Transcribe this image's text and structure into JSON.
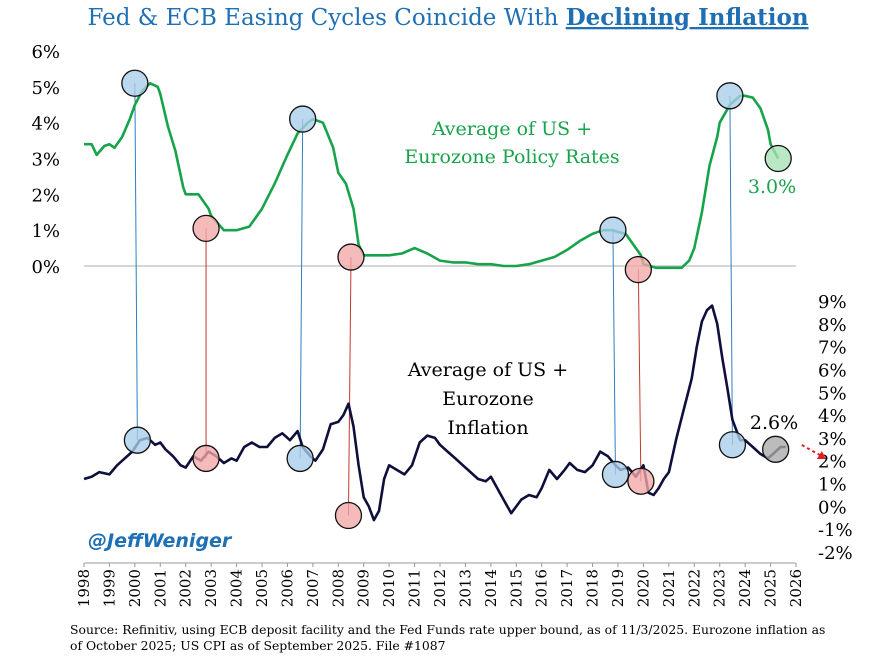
{
  "chart_data": {
    "type": "line",
    "title": "Fed & ECB Easing Cycles Coincide With ",
    "title_emphasis": "Declining Inflation",
    "x_ticks": [
      "1998",
      "1999",
      "2000",
      "2001",
      "2002",
      "2003",
      "2004",
      "2005",
      "2006",
      "2007",
      "2008",
      "2009",
      "2010",
      "2011",
      "2012",
      "2013",
      "2014",
      "2015",
      "2016",
      "2017",
      "2018",
      "2019",
      "2020",
      "2021",
      "2022",
      "2023",
      "2024",
      "2025",
      "2026"
    ],
    "xlim": [
      1998,
      2026
    ],
    "left_axis": {
      "ticks": [
        "0%",
        "1%",
        "2%",
        "3%",
        "4%",
        "5%",
        "6%"
      ],
      "ylim": [
        0,
        6
      ]
    },
    "right_axis": {
      "ticks": [
        "-2%",
        "-1%",
        "0%",
        "1%",
        "2%",
        "3%",
        "4%",
        "5%",
        "6%",
        "7%",
        "8%",
        "9%"
      ],
      "ylim": [
        -2,
        9
      ]
    },
    "series": [
      {
        "name": "Average of US + Eurozone Policy Rates",
        "label_lines": [
          "Average of US +",
          "Eurozone Policy Rates"
        ],
        "axis": "left",
        "color": "#17a34a",
        "end_label": "3.0%",
        "x": [
          1998.0,
          1998.3,
          1998.5,
          1998.8,
          1999.0,
          1999.2,
          1999.5,
          1999.8,
          2000.0,
          2000.3,
          2000.6,
          2000.9,
          2001.0,
          2001.3,
          2001.6,
          2001.9,
          2002.0,
          2002.5,
          2002.9,
          2003.0,
          2003.5,
          2003.8,
          2004.0,
          2004.5,
          2005.0,
          2005.5,
          2006.0,
          2006.4,
          2006.8,
          2007.0,
          2007.4,
          2007.8,
          2008.0,
          2008.3,
          2008.6,
          2008.8,
          2009.0,
          2009.5,
          2010.0,
          2010.5,
          2011.0,
          2011.5,
          2012.0,
          2012.5,
          2013.0,
          2013.5,
          2014.0,
          2014.5,
          2015.0,
          2015.5,
          2016.0,
          2016.5,
          2017.0,
          2017.5,
          2018.0,
          2018.4,
          2018.8,
          2019.0,
          2019.3,
          2019.6,
          2019.9,
          2020.0,
          2020.5,
          2021.0,
          2021.5,
          2021.8,
          2022.0,
          2022.3,
          2022.6,
          2022.9,
          2023.0,
          2023.4,
          2023.8,
          2024.0,
          2024.3,
          2024.6,
          2024.9,
          2025.0,
          2025.3
        ],
        "y": [
          3.4,
          3.4,
          3.1,
          3.35,
          3.4,
          3.3,
          3.6,
          4.1,
          4.5,
          4.9,
          5.1,
          5.0,
          4.8,
          3.9,
          3.2,
          2.2,
          2.0,
          2.0,
          1.6,
          1.4,
          1.0,
          1.0,
          1.0,
          1.1,
          1.6,
          2.3,
          3.1,
          3.7,
          4.0,
          4.1,
          4.0,
          3.3,
          2.6,
          2.3,
          1.6,
          0.6,
          0.3,
          0.3,
          0.3,
          0.35,
          0.5,
          0.35,
          0.15,
          0.1,
          0.1,
          0.05,
          0.05,
          0.0,
          0.0,
          0.05,
          0.15,
          0.25,
          0.45,
          0.7,
          0.9,
          1.0,
          1.0,
          0.95,
          0.9,
          0.6,
          0.3,
          0.05,
          -0.05,
          -0.05,
          -0.05,
          0.15,
          0.5,
          1.5,
          2.8,
          3.6,
          4.0,
          4.5,
          4.75,
          4.75,
          4.7,
          4.4,
          3.8,
          3.4,
          3.0
        ]
      },
      {
        "name": "Average of US + Eurozone Inflation",
        "label_lines": [
          "Average of US +",
          "Eurozone",
          "Inflation"
        ],
        "axis": "right",
        "color": "#0f0f3c",
        "end_label": "2.6%",
        "x": [
          1998.0,
          1998.3,
          1998.6,
          1999.0,
          1999.3,
          1999.6,
          1999.9,
          2000.2,
          2000.5,
          2000.8,
          2001.0,
          2001.2,
          2001.5,
          2001.8,
          2002.0,
          2002.3,
          2002.6,
          2002.9,
          2003.2,
          2003.5,
          2003.8,
          2004.0,
          2004.3,
          2004.6,
          2004.9,
          2005.2,
          2005.5,
          2005.8,
          2006.1,
          2006.4,
          2006.6,
          2006.9,
          2007.1,
          2007.4,
          2007.7,
          2008.0,
          2008.2,
          2008.4,
          2008.6,
          2008.8,
          2009.0,
          2009.2,
          2009.4,
          2009.6,
          2009.8,
          2010.0,
          2010.3,
          2010.6,
          2010.9,
          2011.2,
          2011.5,
          2011.8,
          2012.0,
          2012.3,
          2012.6,
          2012.9,
          2013.2,
          2013.5,
          2013.8,
          2014.0,
          2014.2,
          2014.4,
          2014.6,
          2014.8,
          2015.0,
          2015.2,
          2015.5,
          2015.8,
          2016.0,
          2016.3,
          2016.6,
          2016.9,
          2017.1,
          2017.4,
          2017.7,
          2018.0,
          2018.3,
          2018.6,
          2018.9,
          2019.1,
          2019.4,
          2019.7,
          2020.0,
          2020.2,
          2020.4,
          2020.6,
          2020.8,
          2021.0,
          2021.3,
          2021.6,
          2021.9,
          2022.1,
          2022.3,
          2022.5,
          2022.7,
          2022.9,
          2023.1,
          2023.3,
          2023.5,
          2023.8,
          2024.0,
          2024.3,
          2024.6,
          2024.9,
          2025.1,
          2025.4,
          2025.6
        ],
        "y": [
          1.2,
          1.3,
          1.5,
          1.4,
          1.8,
          2.1,
          2.4,
          2.9,
          3.0,
          2.7,
          2.8,
          2.5,
          2.2,
          1.8,
          1.7,
          2.2,
          2.0,
          2.4,
          2.2,
          1.9,
          2.1,
          2.0,
          2.6,
          2.8,
          2.6,
          2.6,
          3.0,
          3.2,
          2.9,
          3.3,
          2.6,
          2.2,
          2.0,
          2.5,
          3.6,
          3.7,
          4.0,
          4.5,
          3.5,
          1.8,
          0.4,
          0.0,
          -0.6,
          -0.2,
          1.2,
          1.8,
          1.6,
          1.4,
          1.8,
          2.8,
          3.1,
          3.0,
          2.7,
          2.4,
          2.1,
          1.8,
          1.5,
          1.2,
          1.1,
          1.3,
          0.9,
          0.5,
          0.1,
          -0.3,
          0.0,
          0.3,
          0.5,
          0.4,
          0.8,
          1.6,
          1.2,
          1.6,
          1.9,
          1.6,
          1.5,
          1.8,
          2.4,
          2.2,
          1.8,
          1.6,
          1.7,
          1.3,
          1.8,
          0.6,
          0.5,
          0.8,
          1.2,
          1.5,
          3.0,
          4.3,
          5.6,
          7.0,
          8.1,
          8.6,
          8.8,
          8.0,
          6.5,
          5.2,
          3.8,
          2.9,
          2.9,
          2.6,
          2.3,
          2.1,
          2.3,
          2.6,
          2.6
        ]
      }
    ],
    "forecast_arrow_color": "#e02020",
    "peak_markers": [
      {
        "rate": [
          2000.0,
          5.1
        ],
        "inflation": [
          2000.1,
          2.9
        ]
      },
      {
        "rate": [
          2006.6,
          4.1
        ],
        "inflation": [
          2006.5,
          2.1
        ]
      },
      {
        "rate": [
          2018.8,
          1.0
        ],
        "inflation": [
          2018.9,
          1.4
        ]
      },
      {
        "rate": [
          2023.4,
          4.75
        ],
        "inflation": [
          2023.5,
          2.7
        ]
      }
    ],
    "trough_markers": [
      {
        "rate": [
          2002.8,
          1.05
        ],
        "inflation": [
          2002.8,
          2.1
        ]
      },
      {
        "rate": [
          2008.5,
          0.25
        ],
        "inflation": [
          2008.4,
          -0.4
        ]
      },
      {
        "rate": [
          2019.8,
          -0.1
        ],
        "inflation": [
          2019.9,
          1.1
        ]
      }
    ],
    "end_markers": {
      "rate": [
        2025.3,
        3.0
      ],
      "inflation": [
        2025.2,
        2.5
      ]
    },
    "colors": {
      "title": "#1f6fb5",
      "peak_fill": "#a9cdea",
      "peak_line": "#2f7fc1",
      "trough_fill": "#f2a7a7",
      "trough_line": "#c0392b",
      "end_rate_fill": "#a7e0b4",
      "end_infl_fill": "#a9a9a9"
    }
  },
  "handle": "@JeffWeniger",
  "source_lines": [
    "Source: Refinitiv, using ECB deposit facility and the Fed Funds rate upper bound, as of 11/3/2025. Eurozone inflation as",
    "of October 2025; US CPI as of September 2025. File #1087"
  ]
}
